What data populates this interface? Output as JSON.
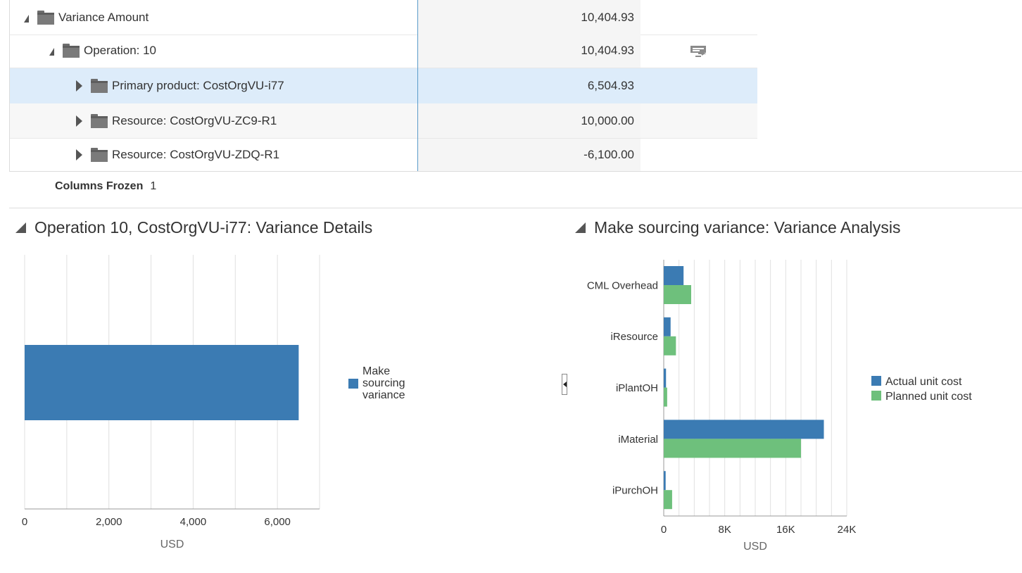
{
  "tree": {
    "rows": [
      {
        "label": "Variance Amount",
        "amount": "10,404.93"
      },
      {
        "label": "Operation: 10",
        "amount": "10,404.93"
      },
      {
        "label": "Primary product: CostOrgVU-i77",
        "amount": "6,504.93"
      },
      {
        "label": "Resource: CostOrgVU-ZC9-R1",
        "amount": "10,000.00"
      },
      {
        "label": "Resource: CostOrgVU-ZDQ-R1",
        "amount": "-6,100.00"
      }
    ],
    "selected_row": 2,
    "icon": "folder-icon"
  },
  "frozen": {
    "label": "Columns Frozen",
    "value": "1"
  },
  "left_panel": {
    "title": "Operation 10, CostOrgVU-i77: Variance Details"
  },
  "right_panel": {
    "title": "Make sourcing variance: Variance Analysis"
  },
  "colors": {
    "selected_row": "#ddecfa",
    "amount_bg": "#f5f5f5",
    "actual": "#3b7bb3",
    "planned": "#6ec07c"
  },
  "chart_data": [
    {
      "type": "bar",
      "orientation": "horizontal",
      "categories": [
        ""
      ],
      "series": [
        {
          "name": "Make sourcing variance",
          "values": [
            6504.93
          ]
        }
      ],
      "xlabel": "USD",
      "xlim": [
        0,
        7000
      ],
      "xticks": [
        "0",
        "2,000",
        "4,000",
        "6,000"
      ],
      "xtick_values": [
        0,
        2000,
        4000,
        6000
      ],
      "grid": true,
      "legend": "right"
    },
    {
      "type": "bar",
      "orientation": "horizontal",
      "categories": [
        "CML Overhead",
        "iResource",
        "iPlantOH",
        "iMaterial",
        "iPurchOH"
      ],
      "series": [
        {
          "name": "Actual unit cost",
          "values": [
            2600,
            900,
            300,
            21000,
            250
          ]
        },
        {
          "name": "Planned unit cost",
          "values": [
            3600,
            1600,
            450,
            18000,
            1100
          ]
        }
      ],
      "xlabel": "USD",
      "xlim": [
        0,
        24000
      ],
      "xticks": [
        "0",
        "8K",
        "16K",
        "24K"
      ],
      "xtick_values": [
        0,
        8000,
        16000,
        24000
      ],
      "grid": true,
      "legend": "right"
    }
  ]
}
